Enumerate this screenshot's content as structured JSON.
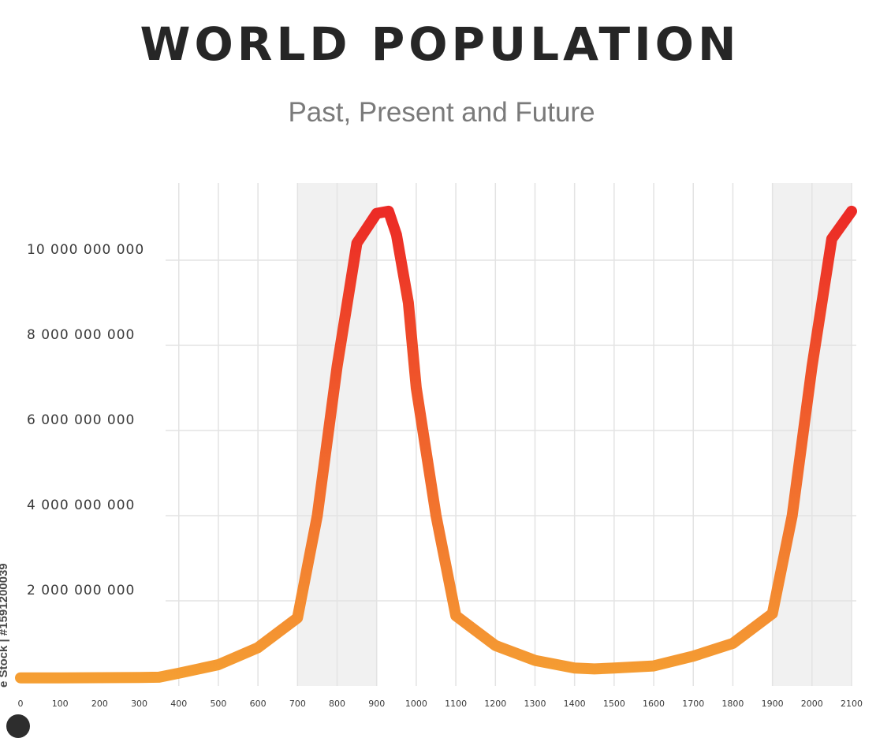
{
  "header": {
    "title": "WORLD POPULATION",
    "subtitle": "Past, Present and Future"
  },
  "watermark": {
    "text": "e Stock | #1591200039"
  },
  "colors": {
    "line_low": "#f5a033",
    "line_high": "#ec2b26",
    "grid": "#e3e3e3",
    "shade": "#f1f1f1",
    "tick_text": "#3a3a3a"
  },
  "chart_data": {
    "type": "line",
    "title": "WORLD POPULATION",
    "subtitle": "Past, Present and Future",
    "xlabel": "",
    "ylabel": "",
    "x_ticks": [
      "0",
      "100",
      "200",
      "300",
      "400",
      "500",
      "600",
      "700",
      "800",
      "900",
      "1000",
      "1100",
      "1200",
      "1300",
      "1400",
      "1500",
      "1600",
      "1700",
      "1800",
      "1900",
      "2000",
      "2100"
    ],
    "y_ticks": [
      "2 000 000 000",
      "4 000 000 000",
      "6 000 000 000",
      "8 000 000 000",
      "10 000 000 000"
    ],
    "y_tick_values": [
      2000000000,
      4000000000,
      6000000000,
      8000000000,
      10000000000
    ],
    "ylim": [
      0,
      11000000000
    ],
    "shaded_bands": [
      [
        "700",
        "900"
      ],
      [
        "1900",
        "2100"
      ]
    ],
    "grid": true,
    "series": [
      {
        "x": [
          0,
          100,
          200,
          300,
          350,
          400,
          500,
          600,
          700,
          750,
          800,
          850,
          900,
          930,
          950,
          980,
          1000,
          1050,
          1100,
          1150,
          1200,
          1300,
          1400,
          1450,
          1500,
          1600,
          1700,
          1800,
          1900,
          1950,
          2000,
          2050,
          2100
        ],
        "y": [
          190000000,
          190000000,
          195000000,
          200000000,
          205000000,
          300000000,
          500000000,
          900000000,
          1600000000,
          4000000000,
          7500000000,
          10400000000,
          11100000000,
          11150000000,
          10600000000,
          9000000000,
          7000000000,
          4000000000,
          1650000000,
          1300000000,
          950000000,
          600000000,
          420000000,
          400000000,
          420000000,
          470000000,
          700000000,
          1000000000,
          1700000000,
          4000000000,
          7500000000,
          10500000000,
          11150000000
        ]
      }
    ]
  }
}
